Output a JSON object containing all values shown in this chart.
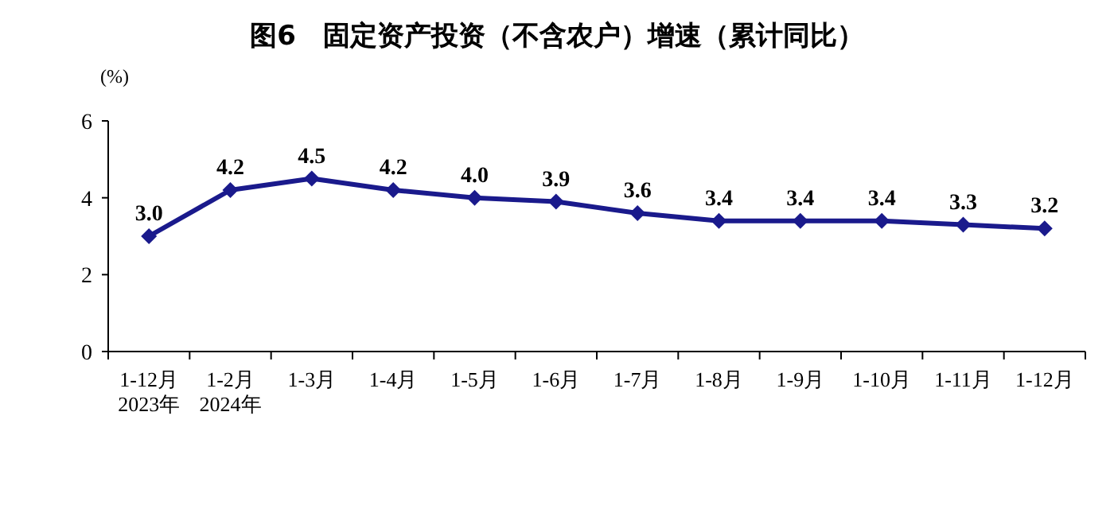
{
  "chart_data": {
    "type": "line",
    "title": "图6　固定资产投资（不含农户）增速（累计同比）",
    "ylabel": "(%)",
    "categories": [
      "1-12月\n2023年",
      "1-2月\n2024年",
      "1-3月",
      "1-4月",
      "1-5月",
      "1-6月",
      "1-7月",
      "1-8月",
      "1-9月",
      "1-10月",
      "1-11月",
      "1-12月"
    ],
    "series": [
      {
        "color": "#1a1a8c",
        "values": [
          3.0,
          4.2,
          4.5,
          4.2,
          4.0,
          3.9,
          3.6,
          3.4,
          3.4,
          3.4,
          3.3,
          3.2
        ],
        "value_labels": [
          "3.0",
          "4.2",
          "4.5",
          "4.2",
          "4.0",
          "3.9",
          "3.6",
          "3.4",
          "3.4",
          "3.4",
          "3.3",
          "3.2"
        ]
      }
    ],
    "ylim": [
      0,
      6
    ],
    "yticks": [
      0,
      2,
      4,
      6
    ],
    "marker": "diamond",
    "line_style": "solid"
  }
}
